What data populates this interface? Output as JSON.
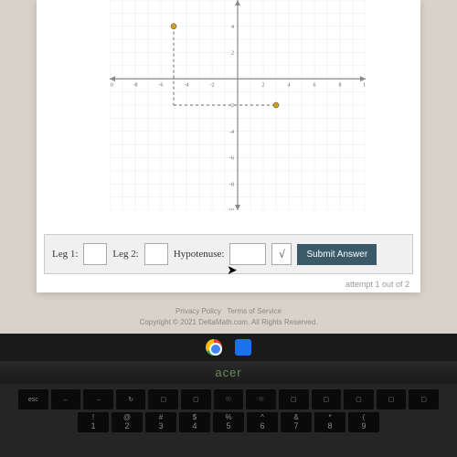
{
  "graph": {
    "type": "coordinate-grid",
    "xlim": [
      -10,
      10
    ],
    "ylim": [
      -10,
      6
    ],
    "grid_color": "#e8e8e8",
    "axis_color": "#888888",
    "background_color": "#fdfdfd",
    "tick_fontsize": 6,
    "x_ticks": [
      -10,
      -8,
      -6,
      -4,
      -2,
      2,
      4,
      6,
      8,
      10
    ],
    "y_ticks": [
      -10,
      -8,
      -6,
      -4,
      -2,
      2,
      4
    ],
    "points": [
      {
        "x": -5,
        "y": 4,
        "color": "#d4a017"
      },
      {
        "x": 3,
        "y": -2,
        "color": "#d4a017"
      }
    ],
    "dashed_lines": [
      {
        "from": [
          -5,
          4
        ],
        "to": [
          -5,
          -2
        ],
        "color": "#666666"
      },
      {
        "from": [
          -5,
          -2
        ],
        "to": [
          3,
          -2
        ],
        "color": "#666666"
      }
    ],
    "point_radius": 3
  },
  "answers": {
    "leg1_label": "Leg 1:",
    "leg2_label": "Leg 2:",
    "hyp_label": "Hypotenuse:",
    "leg1_value": "",
    "leg2_value": "",
    "hyp_value": "",
    "sqrt_symbol": "√",
    "submit_label": "Submit Answer"
  },
  "attempt_text": "attempt 1 out of 2",
  "footer": {
    "links": "Privacy Policy   Terms of Service",
    "copyright": "Copyright © 2021 DeltaMath.com. All Rights Reserved."
  },
  "brand": "acer",
  "keyboard": {
    "row1": [
      "esc",
      "←",
      "→",
      "↻",
      "▢",
      "▢",
      "☉",
      "☉",
      "▢",
      "▢",
      "▢",
      "▢",
      "▢"
    ],
    "row2": [
      {
        "sym": "!",
        "num": "1"
      },
      {
        "sym": "@",
        "num": "2"
      },
      {
        "sym": "#",
        "num": "3"
      },
      {
        "sym": "$",
        "num": "4"
      },
      {
        "sym": "%",
        "num": "5"
      },
      {
        "sym": "^",
        "num": "6"
      },
      {
        "sym": "&",
        "num": "7"
      },
      {
        "sym": "*",
        "num": "8"
      },
      {
        "sym": "(",
        "num": "9"
      }
    ]
  }
}
